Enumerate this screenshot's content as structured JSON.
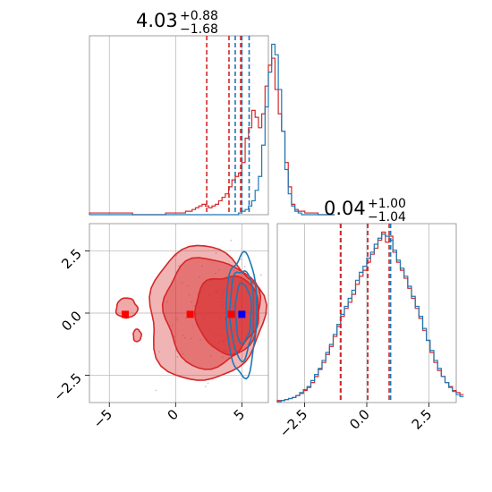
{
  "colors": {
    "red": "#d62728",
    "blue": "#1f77b4",
    "grid": "#b0b0b0",
    "frame": "#888888"
  },
  "chart_data": [
    {
      "type": "histogram",
      "panel": "top-left",
      "title": {
        "value": "4.03",
        "plus": "+0.88",
        "minus": "−1.68"
      },
      "xlim": [
        -6.5,
        7
      ],
      "xticks": [
        -5,
        0,
        5
      ],
      "quantile_lines": {
        "red": [
          2.35,
          4.03,
          4.91
        ],
        "blue": [
          4.5,
          5.0,
          5.55
        ]
      },
      "series": [
        {
          "color": "red",
          "x_start": -6.5,
          "bin_width": 0.25,
          "values": [
            1,
            1,
            1,
            1,
            1,
            1,
            1,
            1,
            1,
            1,
            1,
            1,
            1,
            0,
            0,
            0,
            0,
            0,
            0,
            0,
            0,
            0,
            0,
            1,
            1,
            1,
            1,
            1,
            1,
            2,
            2,
            3,
            4,
            5,
            6,
            5,
            4,
            5,
            6,
            8,
            10,
            12,
            16,
            20,
            22,
            24,
            30,
            44,
            50,
            60,
            56,
            50,
            58,
            74,
            86,
            90,
            72,
            58,
            48,
            30,
            16,
            6,
            3,
            2,
            2,
            1,
            1,
            1,
            1,
            0,
            0,
            0,
            0,
            0
          ]
        },
        {
          "color": "blue",
          "x_start": -6.5,
          "bin_width": 0.25,
          "values": [
            0,
            0,
            0,
            0,
            0,
            0,
            0,
            0,
            0,
            0,
            0,
            0,
            0,
            0,
            0,
            0,
            0,
            0,
            0,
            0,
            0,
            0,
            0,
            0,
            0,
            0,
            0,
            0,
            0,
            0,
            0,
            0,
            0,
            0,
            0,
            0,
            0,
            0,
            0,
            0,
            0,
            0,
            0,
            0,
            0,
            1,
            2,
            3,
            5,
            8,
            14,
            22,
            40,
            62,
            82,
            98,
            92,
            72,
            48,
            26,
            12,
            5,
            2,
            1,
            0,
            0,
            0,
            0,
            0,
            0,
            0,
            0,
            0,
            0
          ]
        }
      ]
    },
    {
      "type": "histogram",
      "panel": "bottom-right",
      "title": {
        "value": "0.04",
        "plus": "+1.00",
        "minus": "−1.04"
      },
      "xlim": [
        -3.6,
        3.6
      ],
      "xticks": [
        -2.5,
        0.0,
        2.5
      ],
      "xtick_labels": [
        "−2.5",
        "0.0",
        "2.5"
      ],
      "quantile_lines": {
        "red": [
          -1.06,
          0.04,
          0.9
        ],
        "blue": [
          -1.04,
          0.04,
          0.96
        ]
      },
      "series": [
        {
          "color": "red",
          "x_start": -3.6,
          "bin_width": 0.15,
          "values": [
            2,
            2,
            3,
            4,
            5,
            7,
            9,
            12,
            15,
            20,
            26,
            33,
            40,
            48,
            56,
            66,
            76,
            86,
            94,
            100,
            108,
            118,
            126,
            132,
            140,
            148,
            154,
            162,
            170,
            160,
            166,
            150,
            140,
            132,
            124,
            114,
            104,
            94,
            84,
            72,
            62,
            50,
            40,
            32,
            26,
            20,
            16,
            12,
            10,
            8
          ]
        },
        {
          "color": "blue",
          "x_start": -3.6,
          "bin_width": 0.15,
          "values": [
            1,
            2,
            3,
            4,
            5,
            7,
            10,
            13,
            16,
            22,
            28,
            34,
            42,
            50,
            58,
            68,
            78,
            88,
            96,
            104,
            112,
            122,
            130,
            136,
            144,
            150,
            158,
            164,
            168,
            166,
            162,
            152,
            142,
            134,
            126,
            116,
            106,
            96,
            86,
            74,
            62,
            52,
            42,
            34,
            26,
            20,
            15,
            11,
            8,
            6
          ]
        }
      ]
    },
    {
      "type": "contour",
      "panel": "bottom-left",
      "xlim": [
        -6.5,
        7
      ],
      "ylim": [
        -3.6,
        3.6
      ],
      "xticks": [
        -5,
        0,
        5
      ],
      "xtick_labels": [
        "−5",
        "0",
        "5"
      ],
      "yticks": [
        -2.5,
        0.0,
        2.5
      ],
      "ytick_labels": [
        "−2.5",
        "0.0",
        "2.5"
      ],
      "red_levels": [
        {
          "cx": 3.9,
          "cy": 0.0,
          "rx": 2.4,
          "ry": 1.55,
          "fill": 0.35
        },
        {
          "cx": 2.7,
          "cy": 0.05,
          "rx": 3.6,
          "ry": 2.2,
          "fill": 0.2
        },
        {
          "cx": 2.2,
          "cy": -0.05,
          "rx": 4.3,
          "ry": 2.7,
          "fill": 0.1
        }
      ],
      "blue_levels": [
        {
          "cx": 5.1,
          "cy": 0.0,
          "rx": 0.6,
          "ry": 1.2
        },
        {
          "cx": 5.0,
          "cy": 0.0,
          "rx": 0.9,
          "ry": 1.8
        },
        {
          "cx": 5.0,
          "cy": -0.05,
          "rx": 1.15,
          "ry": 2.45
        }
      ],
      "red_islands": [
        {
          "cx": -3.7,
          "cy": 0.2,
          "rx": 0.8,
          "ry": 0.4
        },
        {
          "cx": -2.9,
          "cy": -0.9,
          "rx": 0.3,
          "ry": 0.25
        }
      ],
      "markers": {
        "red": [
          {
            "x": -3.8,
            "y": -0.05
          },
          {
            "x": 1.1,
            "y": -0.05
          },
          {
            "x": 4.2,
            "y": -0.05
          }
        ],
        "blue": [
          {
            "x": 5.0,
            "y": -0.05
          }
        ]
      }
    }
  ]
}
